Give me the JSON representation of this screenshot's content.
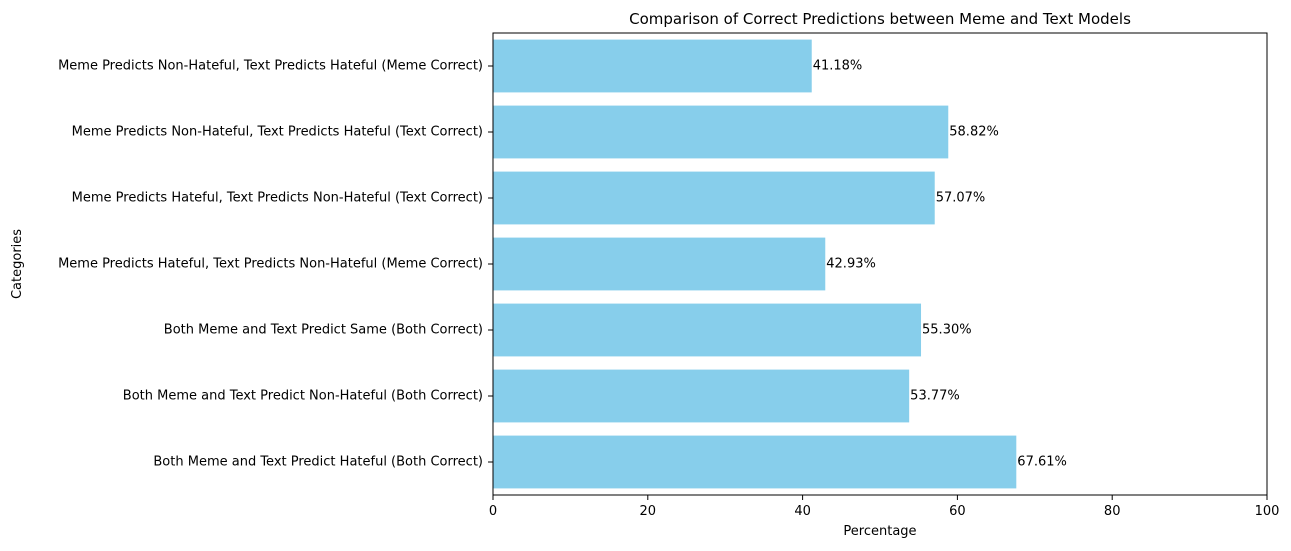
{
  "chart_data": {
    "type": "bar",
    "orientation": "horizontal",
    "title": "Comparison of Correct Predictions between Meme and Text Models",
    "xlabel": "Percentage",
    "ylabel": "Categories",
    "xlim": [
      0,
      100
    ],
    "xticks": [
      "0",
      "20",
      "40",
      "60",
      "80",
      "100"
    ],
    "grid": false,
    "bar_color": "#87CEEB",
    "categories": [
      "Both Meme and Text Predict Hateful (Both Correct)",
      "Both Meme and Text Predict Non-Hateful (Both Correct)",
      "Both Meme and Text Predict Same (Both Correct)",
      "Meme Predicts Hateful, Text Predicts Non-Hateful (Meme Correct)",
      "Meme Predicts Hateful, Text Predicts Non-Hateful (Text Correct)",
      "Meme Predicts Non-Hateful, Text Predicts Hateful (Text Correct)",
      "Meme Predicts Non-Hateful, Text Predicts Hateful (Meme Correct)"
    ],
    "values": [
      67.61,
      53.77,
      55.3,
      42.93,
      57.07,
      58.82,
      41.18
    ],
    "data_labels": [
      "67.61%",
      "53.77%",
      "55.30%",
      "42.93%",
      "57.07%",
      "58.82%",
      "41.18%"
    ]
  }
}
